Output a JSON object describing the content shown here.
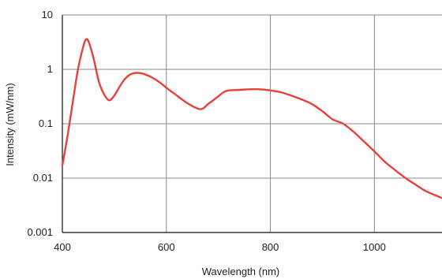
{
  "chart_data": {
    "type": "line",
    "title": "",
    "xlabel": "Wavelength (nm)",
    "ylabel": "Intensity (mW/nm)",
    "xlim": [
      400,
      1130
    ],
    "ylim": [
      0.001,
      10
    ],
    "yscale": "log",
    "grid": true,
    "legend": "none",
    "x_ticks": [
      400,
      600,
      800,
      1000
    ],
    "x_tick_labels": [
      "400",
      "600",
      "800",
      "1000"
    ],
    "y_ticks": [
      0.001,
      0.01,
      0.1,
      1,
      10
    ],
    "y_tick_labels": [
      "0.001",
      "0.01",
      "0.1",
      "1",
      "10"
    ],
    "series": [
      {
        "color": "#e8403a",
        "points": [
          [
            400,
            0.017
          ],
          [
            410,
            0.06
          ],
          [
            420,
            0.25
          ],
          [
            430,
            1.0
          ],
          [
            440,
            2.6
          ],
          [
            445,
            3.5
          ],
          [
            450,
            3.3
          ],
          [
            460,
            1.6
          ],
          [
            470,
            0.6
          ],
          [
            480,
            0.35
          ],
          [
            490,
            0.27
          ],
          [
            500,
            0.33
          ],
          [
            510,
            0.48
          ],
          [
            520,
            0.66
          ],
          [
            530,
            0.8
          ],
          [
            540,
            0.86
          ],
          [
            550,
            0.85
          ],
          [
            560,
            0.8
          ],
          [
            570,
            0.73
          ],
          [
            580,
            0.64
          ],
          [
            590,
            0.55
          ],
          [
            600,
            0.46
          ],
          [
            620,
            0.33
          ],
          [
            640,
            0.24
          ],
          [
            660,
            0.19
          ],
          [
            670,
            0.19
          ],
          [
            680,
            0.23
          ],
          [
            690,
            0.27
          ],
          [
            700,
            0.32
          ],
          [
            710,
            0.38
          ],
          [
            720,
            0.41
          ],
          [
            740,
            0.42
          ],
          [
            760,
            0.43
          ],
          [
            780,
            0.43
          ],
          [
            800,
            0.41
          ],
          [
            820,
            0.38
          ],
          [
            840,
            0.33
          ],
          [
            860,
            0.28
          ],
          [
            880,
            0.23
          ],
          [
            900,
            0.17
          ],
          [
            920,
            0.12
          ],
          [
            940,
            0.1
          ],
          [
            960,
            0.071
          ],
          [
            980,
            0.047
          ],
          [
            1000,
            0.031
          ],
          [
            1020,
            0.02
          ],
          [
            1040,
            0.014
          ],
          [
            1060,
            0.01
          ],
          [
            1080,
            0.0075
          ],
          [
            1100,
            0.0057
          ],
          [
            1130,
            0.0043
          ]
        ]
      }
    ]
  }
}
